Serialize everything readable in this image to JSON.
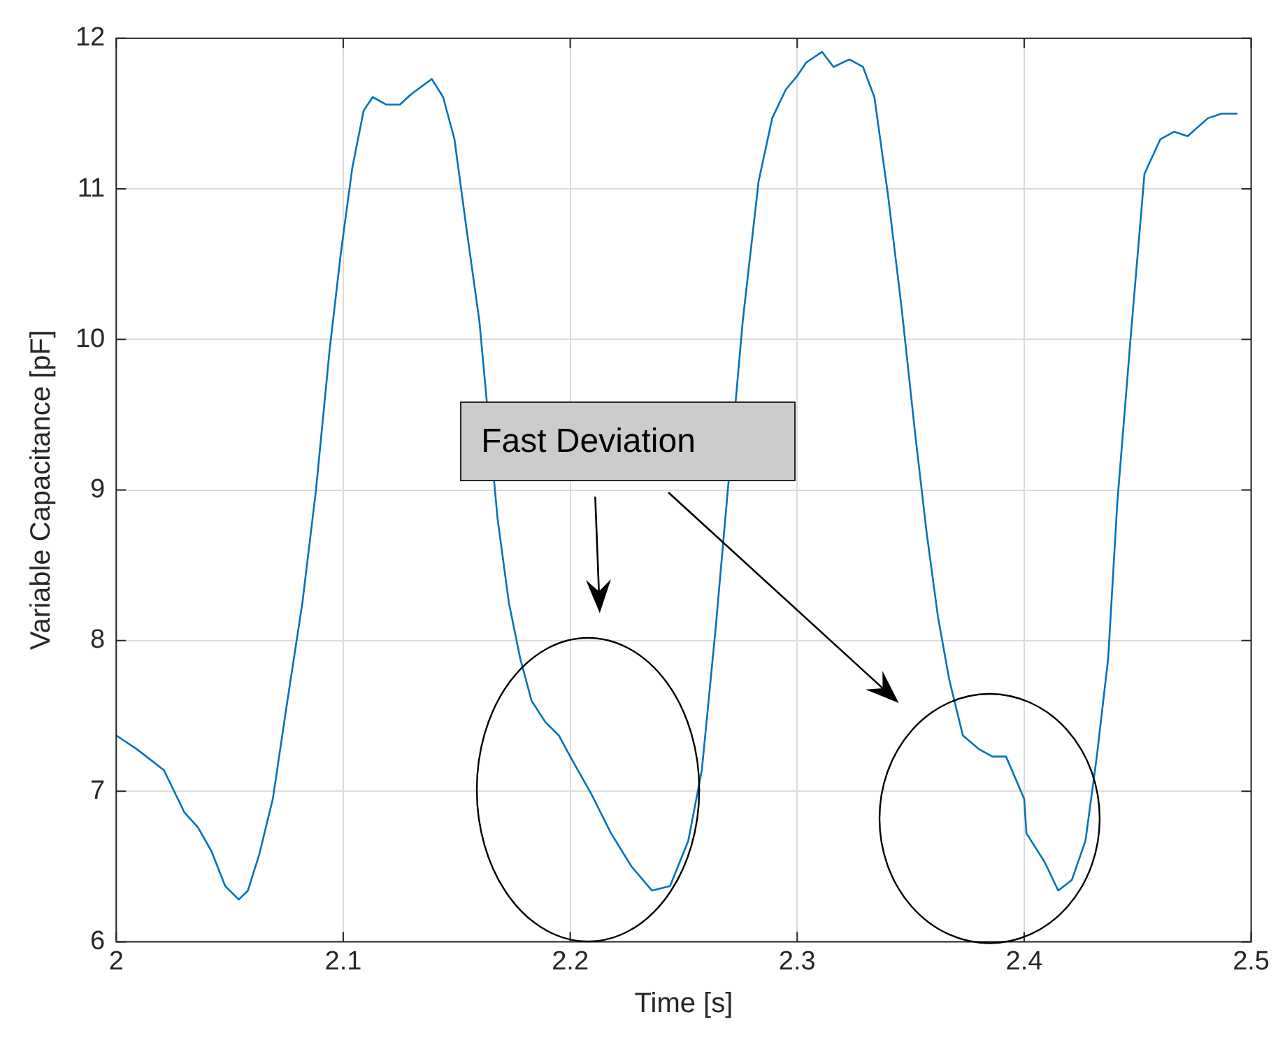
{
  "chart_data": {
    "type": "line",
    "xlabel": "Time [s]",
    "ylabel": "Variable Capacitance [pF]",
    "xlim": [
      2,
      2.5
    ],
    "xticks": [
      2,
      2.1,
      2.2,
      2.3,
      2.4,
      2.5
    ],
    "ylim": [
      6,
      12
    ],
    "yticks": [
      6,
      7,
      8,
      9,
      10,
      11,
      12
    ],
    "grid": true,
    "marker": "none",
    "line_style": "solid",
    "annotations": [
      "Fast Deviation"
    ],
    "series": [
      {
        "color": "#0072bd",
        "x": [
          2.0,
          2.009,
          2.021,
          2.03,
          2.036,
          2.042,
          2.048,
          2.054,
          2.058,
          2.063,
          2.069,
          2.075,
          2.082,
          2.088,
          2.094,
          2.099,
          2.104,
          2.109,
          2.113,
          2.119,
          2.125,
          2.13,
          2.139,
          2.144,
          2.149,
          2.154,
          2.16,
          2.164,
          2.168,
          2.173,
          2.178,
          2.183,
          2.189,
          2.195,
          2.2,
          2.209,
          2.218,
          2.227,
          2.236,
          2.244,
          2.252,
          2.258,
          2.264,
          2.27,
          2.276,
          2.283,
          2.289,
          2.295,
          2.3,
          2.304,
          2.311,
          2.316,
          2.323,
          2.329,
          2.334,
          2.34,
          2.346,
          2.352,
          2.357,
          2.362,
          2.367,
          2.373,
          2.38,
          2.386,
          2.392,
          2.4,
          2.401,
          2.409,
          2.415,
          2.421,
          2.427,
          2.432,
          2.437,
          2.441,
          2.447,
          2.453,
          2.46,
          2.466,
          2.472,
          2.481,
          2.487,
          2.494
        ],
        "values": [
          7.37,
          7.28,
          7.14,
          6.86,
          6.76,
          6.6,
          6.37,
          6.28,
          6.34,
          6.58,
          6.95,
          7.56,
          8.25,
          9.0,
          9.93,
          10.58,
          11.14,
          11.52,
          11.61,
          11.56,
          11.56,
          11.63,
          11.73,
          11.61,
          11.33,
          10.77,
          10.12,
          null,
          8.81,
          8.25,
          7.88,
          7.6,
          7.46,
          7.37,
          7.23,
          6.99,
          6.72,
          6.5,
          6.34,
          6.37,
          6.67,
          7.14,
          8.07,
          null,
          10.12,
          11.05,
          11.47,
          11.66,
          11.75,
          11.84,
          11.91,
          11.81,
          11.86,
          11.81,
          11.61,
          10.96,
          10.21,
          9.37,
          8.72,
          8.16,
          7.74,
          7.37,
          7.28,
          7.23,
          7.23,
          6.95,
          6.72,
          6.53,
          6.34,
          6.41,
          6.67,
          7.23,
          7.88,
          8.91,
          10.03,
          11.1,
          11.33,
          11.38,
          11.35,
          11.47,
          11.5,
          11.5
        ]
      }
    ]
  }
}
